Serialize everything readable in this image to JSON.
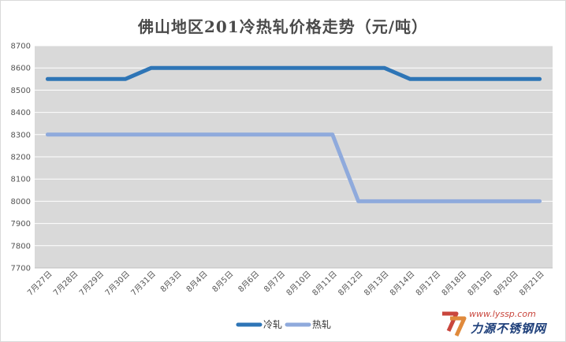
{
  "chart_data": {
    "type": "line",
    "title": "佛山地区201冷热轧价格走势（元/吨）",
    "xlabel": "",
    "ylabel": "",
    "categories": [
      "7月27日",
      "7月28日",
      "7月29日",
      "7月30日",
      "7月31日",
      "8月3日",
      "8月4日",
      "8月5日",
      "8月6日",
      "8月7日",
      "8月10日",
      "8月11日",
      "8月12日",
      "8月13日",
      "8月14日",
      "8月17日",
      "8月18日",
      "8月19日",
      "8月20日",
      "8月21日"
    ],
    "ylim": [
      7700,
      8700
    ],
    "yticks": [
      7700,
      7800,
      7900,
      8000,
      8100,
      8200,
      8300,
      8400,
      8500,
      8600,
      8700
    ],
    "grid": "horizontal",
    "legend_position": "bottom",
    "series": [
      {
        "name": "冷轧",
        "color": "#2e75b6",
        "values": [
          8550,
          8550,
          8550,
          8550,
          8600,
          8600,
          8600,
          8600,
          8600,
          8600,
          8600,
          8600,
          8600,
          8600,
          8550,
          8550,
          8550,
          8550,
          8550,
          8550
        ]
      },
      {
        "name": "热轧",
        "color": "#8faadc",
        "values": [
          8300,
          8300,
          8300,
          8300,
          8300,
          8300,
          8300,
          8300,
          8300,
          8300,
          8300,
          8300,
          8000,
          8000,
          8000,
          8000,
          8000,
          8000,
          8000,
          8000
        ]
      }
    ],
    "plot_background": "#d9d9d9"
  },
  "watermark": {
    "url_text": "www.lyssp.com",
    "brand_text": "力源不锈钢网",
    "accent": "#c9463d",
    "brand_color": "#1e3f7a"
  }
}
